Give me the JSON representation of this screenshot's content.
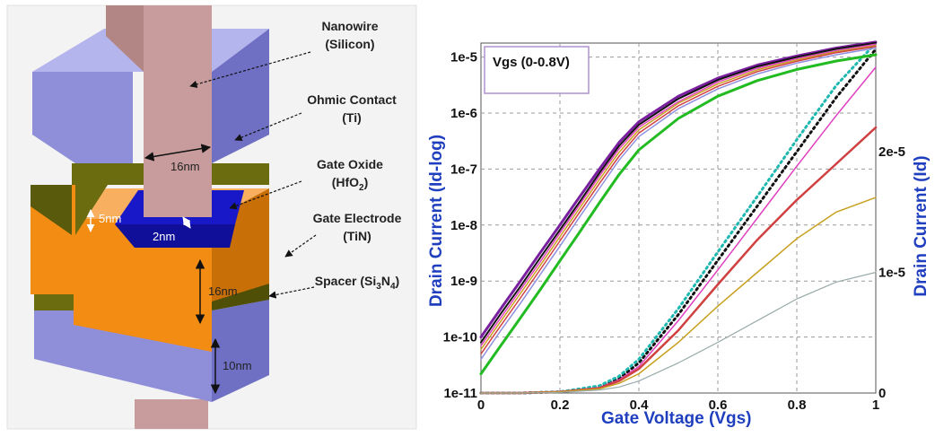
{
  "device": {
    "labels": {
      "nanowire": [
        "Nanowire",
        "(Silicon)"
      ],
      "ohmic": [
        "Ohmic Contact",
        "(Ti)"
      ],
      "oxide": [
        "Gate Oxide",
        "(HfO",
        "2",
        ")"
      ],
      "electrode": [
        "Gate Electrode",
        "(TiN)"
      ],
      "spacer": [
        "Spacer (Si",
        "3",
        "N",
        "4",
        ")"
      ]
    },
    "dims": {
      "width": "16nm",
      "spacer_thk": "5nm",
      "oxide_thk": "2nm",
      "gate_len": "16nm",
      "bottom_len": "10nm"
    },
    "colors": {
      "nanowire": "#c89c9c",
      "ohmic": "#8f8fd9",
      "spacer": "#6b6b10",
      "electrode": "#f28c12",
      "oxide": "#1818c8"
    }
  },
  "chart_data": {
    "type": "line",
    "legend_box": "Vgs (0-0.8V)",
    "xlabel": "Gate Voltage (Vgs)",
    "ylabel_left": "Drain Current (Id-log)",
    "ylabel_right": "Drain Current (Id)",
    "x_ticks": [
      "0",
      "0.2",
      "0.4",
      "0.6",
      "0.8",
      "1"
    ],
    "y_left_ticks": [
      "1e-11",
      "1e-10",
      "1e-9",
      "1e-8",
      "1e-7",
      "1e-6",
      "1e-5"
    ],
    "y_right_ticks": [
      "0",
      "1e-5",
      "2e-5"
    ],
    "xlim": [
      0,
      1
    ],
    "ylim_left_log10": [
      -11,
      -4.75
    ],
    "ylim_right": [
      0,
      2.9e-05
    ],
    "grid": true,
    "log_curves": [
      {
        "color": "#7a1fa0",
        "width": 3,
        "x": [
          0,
          0.05,
          0.1,
          0.15,
          0.2,
          0.25,
          0.3,
          0.35,
          0.4,
          0.5,
          0.6,
          0.7,
          0.8,
          0.9,
          1.0
        ],
        "y": [
          1e-10,
          3.2e-10,
          1e-09,
          3.2e-09,
          1e-08,
          3.2e-08,
          1e-07,
          3e-07,
          7e-07,
          2e-06,
          4.2e-06,
          7.2e-06,
          1.05e-05,
          1.45e-05,
          1.85e-05
        ]
      },
      {
        "color": "#111111",
        "width": 2,
        "x": [
          0,
          0.05,
          0.1,
          0.15,
          0.2,
          0.25,
          0.3,
          0.35,
          0.4,
          0.5,
          0.6,
          0.7,
          0.8,
          0.9,
          1.0
        ],
        "y": [
          8e-11,
          2.6e-10,
          8e-10,
          2.6e-09,
          8.2e-09,
          2.6e-08,
          8.5e-08,
          2.6e-07,
          6.2e-07,
          1.8e-06,
          3.9e-06,
          6.8e-06,
          1e-05,
          1.4e-05,
          1.8e-05
        ]
      },
      {
        "color": "#e040c0",
        "width": 1.5,
        "x": [
          0,
          0.05,
          0.1,
          0.15,
          0.2,
          0.25,
          0.3,
          0.35,
          0.4,
          0.5,
          0.6,
          0.7,
          0.8,
          0.9,
          1.0
        ],
        "y": [
          7e-11,
          2.2e-10,
          7e-10,
          2.2e-09,
          7.2e-09,
          2.3e-08,
          7.5e-08,
          2.3e-07,
          5.6e-07,
          1.6e-06,
          3.6e-06,
          6.3e-06,
          9.4e-06,
          1.3e-05,
          1.7e-05
        ]
      },
      {
        "color": "#c8a020",
        "width": 1.5,
        "x": [
          0,
          0.05,
          0.1,
          0.15,
          0.2,
          0.25,
          0.3,
          0.35,
          0.4,
          0.5,
          0.6,
          0.7,
          0.8,
          0.9,
          1.0
        ],
        "y": [
          6e-11,
          1.9e-10,
          6e-10,
          1.9e-09,
          6.2e-09,
          2e-08,
          6.5e-08,
          2e-07,
          5e-07,
          1.5e-06,
          3.3e-06,
          5.9e-06,
          8.9e-06,
          1.25e-05,
          1.6e-05
        ]
      },
      {
        "color": "#d04040",
        "width": 1.5,
        "x": [
          0,
          0.05,
          0.1,
          0.15,
          0.2,
          0.25,
          0.3,
          0.35,
          0.4,
          0.5,
          0.6,
          0.7,
          0.8,
          0.9,
          1.0
        ],
        "y": [
          5e-11,
          1.6e-10,
          5e-10,
          1.6e-09,
          5.2e-09,
          1.7e-08,
          5.5e-08,
          1.7e-07,
          4.4e-07,
          1.35e-06,
          3e-06,
          5.5e-06,
          8.4e-06,
          1.2e-05,
          1.55e-05
        ]
      },
      {
        "color": "#9090e0",
        "width": 1.5,
        "x": [
          0,
          0.05,
          0.1,
          0.15,
          0.2,
          0.25,
          0.3,
          0.35,
          0.4,
          0.5,
          0.6,
          0.7,
          0.8,
          0.9,
          1.0
        ],
        "y": [
          4e-11,
          1.3e-10,
          4e-10,
          1.3e-09,
          4.2e-09,
          1.4e-08,
          4.5e-08,
          1.45e-07,
          3.8e-07,
          1.2e-06,
          2.7e-06,
          5e-06,
          7.8e-06,
          1.1e-05,
          1.45e-05
        ]
      },
      {
        "color": "#22bb22",
        "width": 3,
        "x": [
          0,
          0.05,
          0.1,
          0.15,
          0.2,
          0.25,
          0.3,
          0.35,
          0.4,
          0.5,
          0.6,
          0.7,
          0.8,
          0.9,
          1.0
        ],
        "y": [
          2.2e-11,
          7e-11,
          2.2e-10,
          7e-10,
          2.3e-09,
          7.5e-09,
          2.5e-08,
          8e-08,
          2.2e-07,
          8e-07,
          2e-06,
          3.8e-06,
          6e-06,
          8.5e-06,
          1.1e-05
        ]
      }
    ],
    "linear_curves": [
      {
        "color": "#111111",
        "width": 3,
        "dash": "2 4",
        "x": [
          0,
          0.1,
          0.2,
          0.3,
          0.35,
          0.4,
          0.5,
          0.6,
          0.7,
          0.8,
          0.9,
          1.0
        ],
        "y": [
          0,
          0,
          1e-07,
          5e-07,
          1.2e-06,
          2.5e-06,
          6.5e-06,
          1.1e-05,
          1.55e-05,
          2e-05,
          2.45e-05,
          2.85e-05
        ]
      },
      {
        "color": "#1fb8b0",
        "width": 3,
        "dash": "2 4",
        "x": [
          0,
          0.1,
          0.2,
          0.3,
          0.35,
          0.4,
          0.5,
          0.6,
          0.7,
          0.8,
          0.9,
          1.0
        ],
        "y": [
          0,
          0,
          1e-07,
          6e-07,
          1.4e-06,
          2.8e-06,
          7e-06,
          1.17e-05,
          1.63e-05,
          2.1e-05,
          2.55e-05,
          2.9e-05
        ]
      },
      {
        "color": "#e040c0",
        "width": 1.5,
        "x": [
          0,
          0.1,
          0.2,
          0.3,
          0.35,
          0.4,
          0.5,
          0.6,
          0.7,
          0.8,
          0.9,
          1.0
        ],
        "y": [
          0,
          0,
          1e-07,
          4.5e-07,
          1.1e-06,
          2.2e-06,
          6e-06,
          1.02e-05,
          1.45e-05,
          1.88e-05,
          2.3e-05,
          2.7e-05
        ]
      },
      {
        "color": "#d04040",
        "width": 2.5,
        "x": [
          0,
          0.1,
          0.2,
          0.3,
          0.35,
          0.4,
          0.5,
          0.6,
          0.7,
          0.8,
          0.9,
          1.0
        ],
        "y": [
          0,
          0,
          1e-07,
          4e-07,
          1e-06,
          2e-06,
          5.2e-06,
          9e-06,
          1.27e-05,
          1.6e-05,
          1.9e-05,
          2.2e-05
        ]
      },
      {
        "color": "#c8a020",
        "width": 1.5,
        "x": [
          0,
          0.1,
          0.2,
          0.3,
          0.35,
          0.4,
          0.5,
          0.6,
          0.7,
          0.8,
          0.9,
          1.0
        ],
        "y": [
          0,
          0,
          1e-07,
          3.5e-07,
          8e-07,
          1.6e-06,
          4.2e-06,
          7.2e-06,
          1e-05,
          1.28e-05,
          1.5e-05,
          1.62e-05
        ]
      },
      {
        "color": "#99aaaa",
        "width": 1.2,
        "x": [
          0,
          0.1,
          0.2,
          0.3,
          0.35,
          0.4,
          0.5,
          0.6,
          0.7,
          0.8,
          0.9,
          1.0
        ],
        "y": [
          0,
          0,
          5e-08,
          2.5e-07,
          5e-07,
          1e-06,
          2.5e-06,
          4.2e-06,
          6e-06,
          7.8e-06,
          9.2e-06,
          1e-05
        ]
      }
    ]
  }
}
